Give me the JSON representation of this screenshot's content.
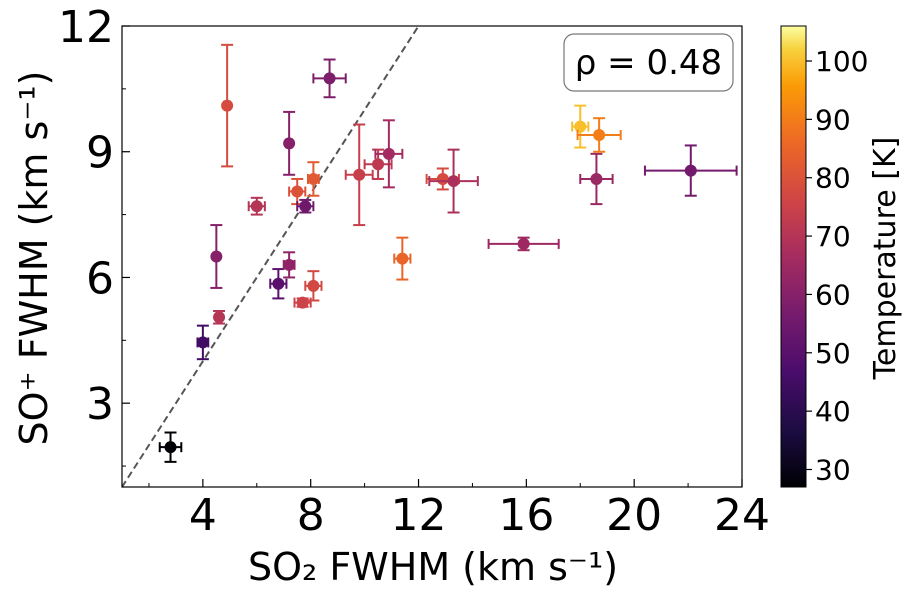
{
  "chart_data": {
    "type": "scatter",
    "annotation": "ρ = 0.48",
    "xlabel": "SO₂ FWHM (km s⁻¹)",
    "ylabel": "SO⁺ FWHM (km s⁻¹)",
    "xlim": [
      1,
      24
    ],
    "ylim": [
      1,
      12
    ],
    "xticks": [
      "4",
      "8",
      "12",
      "16",
      "20",
      "24"
    ],
    "yticks": [
      "3",
      "6",
      "9",
      "12"
    ],
    "grid": false,
    "reference_line": "y = x (dashed)",
    "colorbar": {
      "label": "Temperature [K]",
      "range": [
        27,
        106
      ],
      "ticks": [
        "30",
        "40",
        "50",
        "60",
        "70",
        "80",
        "90",
        "100"
      ],
      "colormap": "inferno"
    },
    "points": [
      {
        "x": 2.8,
        "y": 1.95,
        "xerr": 0.4,
        "yerr": 0.35,
        "temp": 27
      },
      {
        "x": 4.0,
        "y": 4.45,
        "xerr": 0.2,
        "yerr": 0.4,
        "temp": 45
      },
      {
        "x": 4.5,
        "y": 6.5,
        "xerr": 0.1,
        "yerr": 0.75,
        "temp": 60
      },
      {
        "x": 4.6,
        "y": 5.05,
        "xerr": 0.1,
        "yerr": 0.15,
        "temp": 70
      },
      {
        "x": 4.9,
        "y": 10.1,
        "xerr": 0.1,
        "yerr": 1.45,
        "temp": 78
      },
      {
        "x": 6.0,
        "y": 7.7,
        "xerr": 0.3,
        "yerr": 0.2,
        "temp": 70
      },
      {
        "x": 6.8,
        "y": 5.85,
        "xerr": 0.3,
        "yerr": 0.35,
        "temp": 50
      },
      {
        "x": 7.2,
        "y": 9.2,
        "xerr": 0.1,
        "yerr": 0.75,
        "temp": 60
      },
      {
        "x": 7.2,
        "y": 6.3,
        "xerr": 0.2,
        "yerr": 0.3,
        "temp": 62
      },
      {
        "x": 7.5,
        "y": 8.05,
        "xerr": 0.3,
        "yerr": 0.3,
        "temp": 80
      },
      {
        "x": 7.7,
        "y": 5.4,
        "xerr": 0.3,
        "yerr": 0.1,
        "temp": 75
      },
      {
        "x": 7.8,
        "y": 7.7,
        "xerr": 0.3,
        "yerr": 0.15,
        "temp": 55
      },
      {
        "x": 8.1,
        "y": 8.35,
        "xerr": 0.2,
        "yerr": 0.4,
        "temp": 82
      },
      {
        "x": 8.1,
        "y": 5.8,
        "xerr": 0.3,
        "yerr": 0.35,
        "temp": 77
      },
      {
        "x": 8.7,
        "y": 10.75,
        "xerr": 0.6,
        "yerr": 0.45,
        "temp": 58
      },
      {
        "x": 9.8,
        "y": 8.45,
        "xerr": 0.5,
        "yerr": 1.2,
        "temp": 74
      },
      {
        "x": 10.5,
        "y": 8.7,
        "xerr": 0.5,
        "yerr": 0.35,
        "temp": 72
      },
      {
        "x": 10.9,
        "y": 8.95,
        "xerr": 0.5,
        "yerr": 0.8,
        "temp": 66
      },
      {
        "x": 11.4,
        "y": 6.45,
        "xerr": 0.3,
        "yerr": 0.5,
        "temp": 85
      },
      {
        "x": 12.9,
        "y": 8.35,
        "xerr": 0.6,
        "yerr": 0.25,
        "temp": 78
      },
      {
        "x": 13.3,
        "y": 8.3,
        "xerr": 0.9,
        "yerr": 0.75,
        "temp": 68
      },
      {
        "x": 15.9,
        "y": 6.8,
        "xerr": 1.3,
        "yerr": 0.15,
        "temp": 65
      },
      {
        "x": 18.0,
        "y": 9.6,
        "xerr": 0.3,
        "yerr": 0.5,
        "temp": 100
      },
      {
        "x": 18.6,
        "y": 8.35,
        "xerr": 0.6,
        "yerr": 0.6,
        "temp": 64
      },
      {
        "x": 18.7,
        "y": 9.4,
        "xerr": 0.8,
        "yerr": 0.4,
        "temp": 90
      },
      {
        "x": 22.1,
        "y": 8.55,
        "xerr": 1.7,
        "yerr": 0.6,
        "temp": 56
      }
    ]
  }
}
